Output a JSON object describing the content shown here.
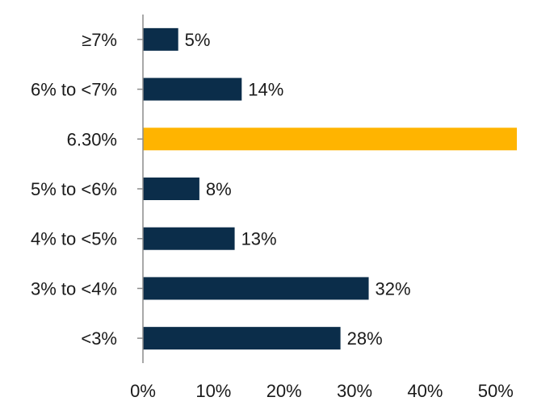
{
  "chart_data": {
    "type": "bar",
    "orientation": "horizontal",
    "title": "",
    "xlabel": "",
    "ylabel": "",
    "categories": [
      "≥7%",
      "6% to <7%",
      "6.30%",
      "5% to <6%",
      "4% to <5%",
      "3% to <4%",
      "<3%"
    ],
    "values": [
      5,
      14,
      53,
      8,
      13,
      32,
      28
    ],
    "data_labels": [
      "5%",
      "14%",
      "",
      "8%",
      "13%",
      "32%",
      "28%"
    ],
    "highlight_category": "6.30%",
    "xlim": [
      0,
      53
    ],
    "x_ticks": [
      0,
      10,
      20,
      30,
      40,
      50
    ],
    "x_tick_labels": [
      "0%",
      "10%",
      "20%",
      "30%",
      "40%",
      "50%"
    ],
    "grid": false,
    "legend": "none",
    "colors": {
      "bar": "#0b2d4a",
      "highlight": "#ffb400",
      "axis": "#8c8c8c",
      "text": "#1a1a1a"
    }
  }
}
